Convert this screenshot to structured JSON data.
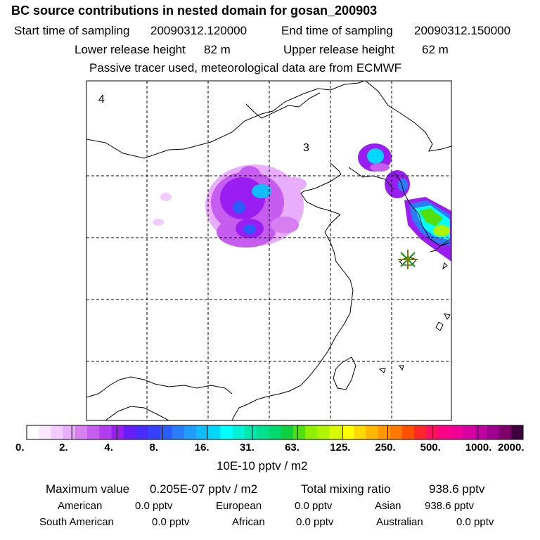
{
  "title": "BC  source contributions in nested domain for gosan_200903",
  "start_label": "Start time of sampling",
  "start_value": "20090312.120000",
  "end_label": "End time of sampling",
  "end_value": "20090312.150000",
  "lower_label": "Lower release height",
  "lower_value": "82 m",
  "upper_label": "Upper release height",
  "upper_value": "62 m",
  "tracer_note": "Passive tracer used, meteorological data are from ECMWF",
  "map": {
    "region_labels": [
      "4",
      "3"
    ],
    "receptor_marker": "star-icon"
  },
  "colorbar": {
    "tick_labels": [
      "0.",
      "2.",
      "4.",
      "8.",
      "16.",
      "31.",
      "63.",
      "125.",
      "250.",
      "500.",
      "1000.",
      "2000."
    ],
    "unit": "10E-10 pptv / m2",
    "colors": [
      "#ffffff",
      "#fbe8ff",
      "#f3ccff",
      "#e9adff",
      "#d77ff0",
      "#c75cf0",
      "#b33ef0",
      "#9a1ef2",
      "#6a1ef7",
      "#4a2bfb",
      "#3440fb",
      "#2a5cfb",
      "#2a7cfb",
      "#209cfb",
      "#10bcfb",
      "#00d8fb",
      "#00ffff",
      "#00f0d8",
      "#00e8b0",
      "#00e090",
      "#00d870",
      "#10d040",
      "#50e010",
      "#8ef000",
      "#b0f400",
      "#d8fa00",
      "#ffff00",
      "#ffd800",
      "#ffb800",
      "#ff9800",
      "#ff7800",
      "#ff5000",
      "#ff2828",
      "#ff1060",
      "#ff0088",
      "#f00098",
      "#d800a0",
      "#c000a0",
      "#a00090",
      "#800070",
      "#400040"
    ]
  },
  "summary": {
    "max_label": "Maximum value",
    "max_value": "0.205E-07 pptv / m2",
    "total_label": "Total mixing ratio",
    "total_value": "938.6 pptv",
    "rows": [
      [
        {
          "label": "American",
          "value": "0.0 pptv"
        },
        {
          "label": "European",
          "value": "0.0 pptv"
        },
        {
          "label": "Asian",
          "value": "938.6 pptv"
        }
      ],
      [
        {
          "label": "South American",
          "value": "0.0 pptv"
        },
        {
          "label": "African",
          "value": "0.0 pptv"
        },
        {
          "label": "Australian",
          "value": "0.0 pptv"
        }
      ]
    ]
  }
}
